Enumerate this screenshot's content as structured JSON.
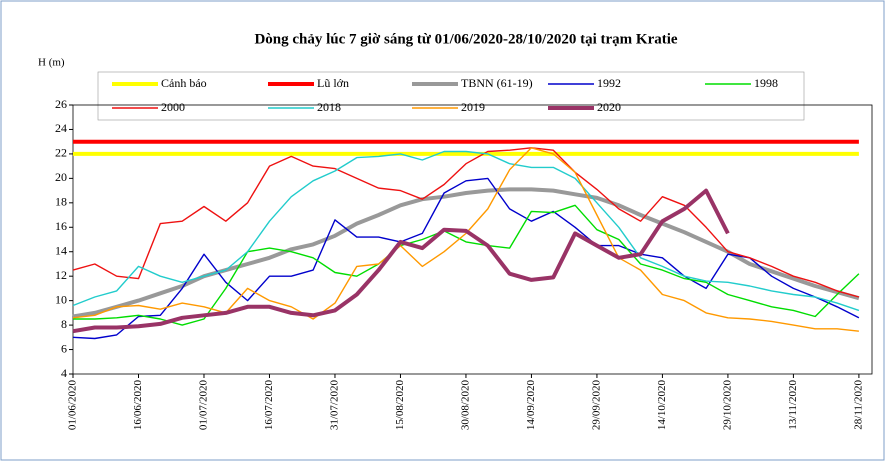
{
  "chart_data": {
    "type": "line",
    "title": "Dòng chảy lúc 7 giờ sáng từ 01/06/2020-28/10/2020 tại trạm Kratie",
    "y_label": "H (m)",
    "x": [
      0,
      5,
      10,
      15,
      20,
      25,
      30,
      35,
      40,
      45,
      50,
      55,
      60,
      65,
      70,
      75,
      80,
      85,
      90,
      95,
      100,
      105,
      110,
      115,
      120,
      125,
      130,
      135,
      140,
      145,
      150,
      155,
      160,
      165,
      170,
      175,
      180
    ],
    "xlim": [
      0,
      183
    ],
    "xticks": [
      {
        "value": 0,
        "label": "01/06/2020"
      },
      {
        "value": 15,
        "label": "16/06/2020"
      },
      {
        "value": 30,
        "label": "01/07/2020"
      },
      {
        "value": 45,
        "label": "16/07/2020"
      },
      {
        "value": 60,
        "label": "31/07/2020"
      },
      {
        "value": 75,
        "label": "15/08/2020"
      },
      {
        "value": 90,
        "label": "30/08/2020"
      },
      {
        "value": 105,
        "label": "14/09/2020"
      },
      {
        "value": 120,
        "label": "29/09/2020"
      },
      {
        "value": 135,
        "label": "14/10/2020"
      },
      {
        "value": 150,
        "label": "29/10/2020"
      },
      {
        "value": 165,
        "label": "13/11/2020"
      },
      {
        "value": 180,
        "label": "28/11/2020"
      }
    ],
    "ylim": [
      4,
      26
    ],
    "yticks": [
      4,
      6,
      8,
      10,
      12,
      14,
      16,
      18,
      20,
      22,
      24,
      26
    ],
    "series": [
      {
        "name": "Cảnh báo",
        "color": "#ffff00",
        "values": [
          22,
          22,
          22,
          22,
          22,
          22,
          22,
          22,
          22,
          22,
          22,
          22,
          22,
          22,
          22,
          22,
          22,
          22,
          22,
          22,
          22,
          22,
          22,
          22,
          22,
          22,
          22,
          22,
          22,
          22,
          22,
          22,
          22,
          22,
          22,
          22,
          22
        ]
      },
      {
        "name": "Lũ lớn",
        "color": "#ff0000",
        "values": [
          23,
          23,
          23,
          23,
          23,
          23,
          23,
          23,
          23,
          23,
          23,
          23,
          23,
          23,
          23,
          23,
          23,
          23,
          23,
          23,
          23,
          23,
          23,
          23,
          23,
          23,
          23,
          23,
          23,
          23,
          23,
          23,
          23,
          23,
          23,
          23,
          23
        ]
      },
      {
        "name": "TBNN (61-19)",
        "color": "#999999",
        "values": [
          8.7,
          9.0,
          9.5,
          10.0,
          10.6,
          11.2,
          12.0,
          12.5,
          13.0,
          13.5,
          14.2,
          14.6,
          15.3,
          16.3,
          17.0,
          17.8,
          18.3,
          18.5,
          18.8,
          19.0,
          19.1,
          19.1,
          19.0,
          18.7,
          18.4,
          17.8,
          17.0,
          16.3,
          15.6,
          14.8,
          14.0,
          13.0,
          12.4,
          11.8,
          11.2,
          10.7,
          10.2
        ]
      },
      {
        "name": "1992",
        "color": "#0000cc",
        "values": [
          7.0,
          6.9,
          7.2,
          8.7,
          8.8,
          11.0,
          13.8,
          11.5,
          10.0,
          12.0,
          12.0,
          12.5,
          16.6,
          15.2,
          15.2,
          14.8,
          15.5,
          18.8,
          19.8,
          20.0,
          17.5,
          16.5,
          17.3,
          16.0,
          14.5,
          14.5,
          13.8,
          13.5,
          12.0,
          11.0,
          13.8,
          13.5,
          12.0,
          11.0,
          10.3,
          9.5,
          8.6
        ]
      },
      {
        "name": "1998",
        "color": "#00dd00",
        "values": [
          8.5,
          8.5,
          8.6,
          8.8,
          8.5,
          8.0,
          8.5,
          11.0,
          14.0,
          14.3,
          14.0,
          13.5,
          12.3,
          12.0,
          13.0,
          14.5,
          15.0,
          15.7,
          14.8,
          14.5,
          14.3,
          17.3,
          17.2,
          17.8,
          15.8,
          15.0,
          13.0,
          12.5,
          11.8,
          11.5,
          10.5,
          10.0,
          9.5,
          9.2,
          8.7,
          10.5,
          12.2
        ]
      },
      {
        "name": "2000",
        "color": "#ee1111",
        "values": [
          12.5,
          13.0,
          12.0,
          11.8,
          16.3,
          16.5,
          17.7,
          16.5,
          18.0,
          21.0,
          21.8,
          21.0,
          20.8,
          20.0,
          19.2,
          19.0,
          18.3,
          19.5,
          21.2,
          22.2,
          22.3,
          22.5,
          22.3,
          20.5,
          19.1,
          17.5,
          16.5,
          18.5,
          17.8,
          16.0,
          14.0,
          13.5,
          12.8,
          12.0,
          11.5,
          10.8,
          10.3
        ]
      },
      {
        "name": "2018",
        "color": "#22cccc",
        "values": [
          9.6,
          10.3,
          10.8,
          12.8,
          12.0,
          11.5,
          12.0,
          12.5,
          14.0,
          16.5,
          18.5,
          19.8,
          20.6,
          21.7,
          21.8,
          22.0,
          21.5,
          22.2,
          22.2,
          22.0,
          21.2,
          20.9,
          20.9,
          20.0,
          18.0,
          16.0,
          13.5,
          12.8,
          12.0,
          11.6,
          11.5,
          11.2,
          10.8,
          10.5,
          10.3,
          9.8,
          9.2
        ]
      },
      {
        "name": "2019",
        "color": "#ff9900",
        "values": [
          8.6,
          8.8,
          9.5,
          9.6,
          9.3,
          9.8,
          9.5,
          9.0,
          11.0,
          10.0,
          9.5,
          8.5,
          9.8,
          12.8,
          13.0,
          14.5,
          12.8,
          14.0,
          15.5,
          17.5,
          20.7,
          22.5,
          22.0,
          20.5,
          17.0,
          13.5,
          12.5,
          10.5,
          10.0,
          9.0,
          8.6,
          8.5,
          8.3,
          8.0,
          7.7,
          7.7,
          7.5
        ]
      },
      {
        "name": "2020",
        "color": "#993366",
        "values": [
          7.5,
          7.8,
          7.8,
          7.9,
          8.1,
          8.6,
          8.8,
          9.0,
          9.5,
          9.5,
          9.0,
          8.8,
          9.2,
          10.5,
          12.5,
          14.8,
          14.3,
          15.8,
          15.7,
          14.5,
          12.2,
          11.7,
          11.9,
          15.5,
          14.5,
          13.5,
          13.8,
          16.5,
          17.5,
          19.0,
          15.5,
          null,
          null,
          null,
          null,
          null,
          null
        ]
      }
    ]
  }
}
